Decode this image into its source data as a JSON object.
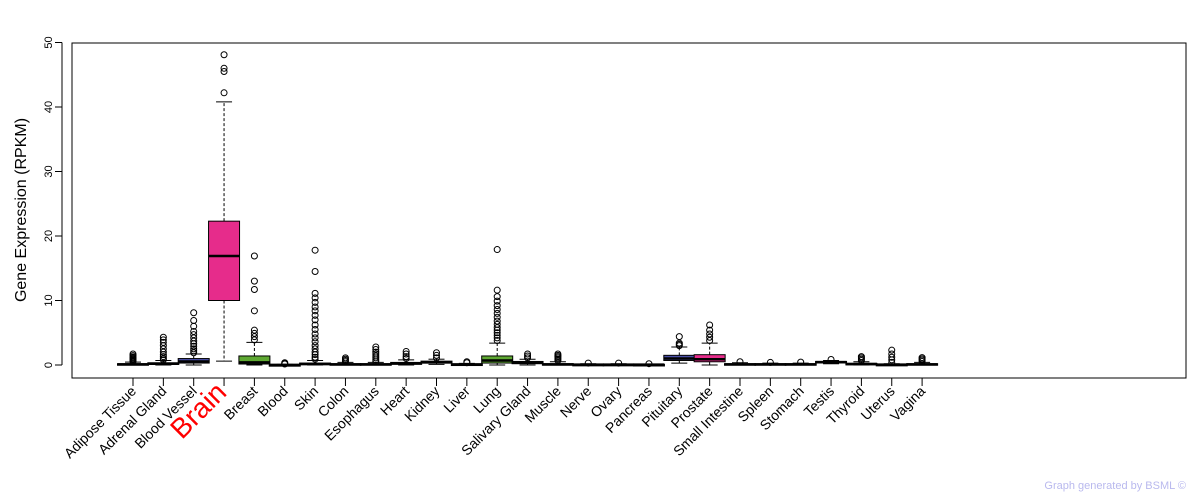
{
  "chart_data": {
    "type": "box",
    "ylabel": "Gene Expression (RPKM)",
    "ylim": [
      -2,
      50
    ],
    "yticks": [
      0,
      10,
      20,
      30,
      40,
      50
    ],
    "highlight": "Brain",
    "credit": "Graph generated by BSML ©",
    "colors": {
      "navy": "#4a4fa8",
      "magenta": "#e62c8b",
      "green": "#5ea832",
      "outlier": "#000000",
      "highlightLabel": "#ff0000"
    },
    "categories": [
      "Adipose Tissue",
      "Adrenal Gland",
      "Blood Vessel",
      "Brain",
      "Breast",
      "Blood",
      "Skin",
      "Colon",
      "Esophagus",
      "Heart",
      "Kidney",
      "Liver",
      "Lung",
      "Salivary Gland",
      "Muscle",
      "Nerve",
      "Ovary",
      "Pancreas",
      "Pituitary",
      "Prostate",
      "Small Intestine",
      "Spleen",
      "Stomach",
      "Testis",
      "Thyroid",
      "Uterus",
      "Vagina"
    ],
    "boxes": [
      {
        "min": 0.0,
        "q1": 0.05,
        "median": 0.1,
        "q3": 0.2,
        "max": 0.45,
        "fill": "navy",
        "outliers": [
          0.5,
          0.65,
          0.8,
          0.95,
          1.1,
          1.25,
          1.45,
          1.7
        ]
      },
      {
        "min": 0.0,
        "q1": 0.1,
        "median": 0.2,
        "q3": 0.35,
        "max": 0.7,
        "fill": "navy",
        "outliers": [
          0.8,
          1.0,
          1.3,
          1.6,
          2.0,
          2.5,
          3.0,
          3.5,
          3.9,
          4.3
        ]
      },
      {
        "min": 0.0,
        "q1": 0.3,
        "median": 0.55,
        "q3": 1.0,
        "max": 1.7,
        "fill": "navy",
        "outliers": [
          1.9,
          2.2,
          2.5,
          2.9,
          3.3,
          3.7,
          4.2,
          4.7,
          5.2,
          6.0,
          6.9,
          8.1
        ]
      },
      {
        "min": 0.6,
        "q1": 10.0,
        "median": 16.9,
        "q3": 22.3,
        "max": 40.8,
        "fill": "magenta",
        "outliers": [
          42.2,
          45.5,
          46.0,
          48.1
        ]
      },
      {
        "min": 0.0,
        "q1": 0.15,
        "median": 0.4,
        "q3": 1.4,
        "max": 3.5,
        "fill": "green",
        "outliers": [
          3.9,
          4.4,
          4.9,
          5.4,
          8.4,
          11.7,
          13.0,
          16.9
        ]
      },
      {
        "min": 0.0,
        "q1": 0.0,
        "median": 0.02,
        "q3": 0.05,
        "max": 0.1,
        "fill": "navy",
        "outliers": [
          0.15,
          0.25,
          0.35
        ]
      },
      {
        "min": 0.0,
        "q1": 0.05,
        "median": 0.15,
        "q3": 0.3,
        "max": 0.7,
        "fill": "navy",
        "outliers": [
          0.9,
          1.2,
          1.6,
          2.0,
          2.5,
          3.0,
          3.6,
          4.2,
          4.8,
          5.5,
          6.2,
          7.0,
          7.7,
          8.4,
          9.0,
          9.7,
          10.4,
          11.1,
          14.5,
          17.8
        ]
      },
      {
        "min": 0.0,
        "q1": 0.05,
        "median": 0.1,
        "q3": 0.2,
        "max": 0.4,
        "fill": "navy",
        "outliers": [
          0.5,
          0.7,
          0.9,
          1.1
        ]
      },
      {
        "min": 0.0,
        "q1": 0.05,
        "median": 0.1,
        "q3": 0.2,
        "max": 0.4,
        "fill": "navy",
        "outliers": [
          0.5,
          0.8,
          1.1,
          1.4,
          1.7,
          2.0,
          2.4,
          2.8
        ]
      },
      {
        "min": 0.0,
        "q1": 0.1,
        "median": 0.25,
        "q3": 0.4,
        "max": 0.8,
        "fill": "navy",
        "outliers": [
          1.0,
          1.3,
          1.7,
          2.1
        ]
      },
      {
        "min": 0.1,
        "q1": 0.3,
        "median": 0.4,
        "q3": 0.6,
        "max": 0.9,
        "fill": "navy",
        "outliers": [
          1.1,
          1.5,
          1.9
        ]
      },
      {
        "min": 0.0,
        "q1": 0.05,
        "median": 0.1,
        "q3": 0.15,
        "max": 0.25,
        "fill": "navy",
        "outliers": [
          0.35,
          0.5
        ]
      },
      {
        "min": 0.0,
        "q1": 0.3,
        "median": 0.7,
        "q3": 1.4,
        "max": 3.4,
        "fill": "green",
        "outliers": [
          3.8,
          4.2,
          4.6,
          5.0,
          5.4,
          5.8,
          6.3,
          6.8,
          7.4,
          8.0,
          8.6,
          9.2,
          9.9,
          10.6,
          11.6,
          17.9
        ]
      },
      {
        "min": 0.0,
        "q1": 0.2,
        "median": 0.35,
        "q3": 0.55,
        "max": 0.9,
        "fill": "navy",
        "outliers": [
          1.1,
          1.4,
          1.7
        ]
      },
      {
        "min": 0.0,
        "q1": 0.05,
        "median": 0.1,
        "q3": 0.2,
        "max": 0.5,
        "fill": "navy",
        "outliers": [
          0.7,
          0.9,
          1.1,
          1.3,
          1.5,
          1.7
        ]
      },
      {
        "min": 0.0,
        "q1": 0.02,
        "median": 0.05,
        "q3": 0.1,
        "max": 0.2,
        "fill": "navy",
        "outliers": [
          0.3
        ]
      },
      {
        "min": 0.0,
        "q1": 0.02,
        "median": 0.05,
        "q3": 0.1,
        "max": 0.2,
        "fill": "navy",
        "outliers": [
          0.3
        ]
      },
      {
        "min": 0.0,
        "q1": 0.02,
        "median": 0.05,
        "q3": 0.08,
        "max": 0.15,
        "fill": "navy",
        "outliers": [
          0.2
        ]
      },
      {
        "min": 0.3,
        "q1": 0.7,
        "median": 1.0,
        "q3": 1.5,
        "max": 2.8,
        "fill": "navy",
        "outliers": [
          3.0,
          3.2,
          3.4,
          4.4
        ]
      },
      {
        "min": 0.0,
        "q1": 0.5,
        "median": 0.9,
        "q3": 1.6,
        "max": 3.4,
        "fill": "magenta",
        "outliers": [
          3.8,
          4.3,
          4.8,
          5.4,
          6.2
        ]
      },
      {
        "min": 0.0,
        "q1": 0.05,
        "median": 0.1,
        "q3": 0.2,
        "max": 0.35,
        "fill": "navy",
        "outliers": [
          0.5
        ]
      },
      {
        "min": 0.0,
        "q1": 0.05,
        "median": 0.1,
        "q3": 0.2,
        "max": 0.3,
        "fill": "navy",
        "outliers": [
          0.4
        ]
      },
      {
        "min": 0.0,
        "q1": 0.05,
        "median": 0.1,
        "q3": 0.2,
        "max": 0.3,
        "fill": "navy",
        "outliers": [
          0.45
        ]
      },
      {
        "min": 0.2,
        "q1": 0.35,
        "median": 0.45,
        "q3": 0.55,
        "max": 0.7,
        "fill": "navy",
        "outliers": [
          0.85
        ]
      },
      {
        "min": 0.0,
        "q1": 0.05,
        "median": 0.15,
        "q3": 0.25,
        "max": 0.5,
        "fill": "navy",
        "outliers": [
          0.7,
          0.9,
          1.1,
          1.3
        ]
      },
      {
        "min": 0.0,
        "q1": 0.02,
        "median": 0.05,
        "q3": 0.1,
        "max": 0.2,
        "fill": "navy",
        "outliers": [
          0.4,
          0.8,
          1.2,
          1.7,
          2.3
        ]
      },
      {
        "min": 0.0,
        "q1": 0.05,
        "median": 0.1,
        "q3": 0.2,
        "max": 0.4,
        "fill": "navy",
        "outliers": [
          0.55,
          0.75,
          0.95,
          1.15
        ]
      }
    ]
  }
}
